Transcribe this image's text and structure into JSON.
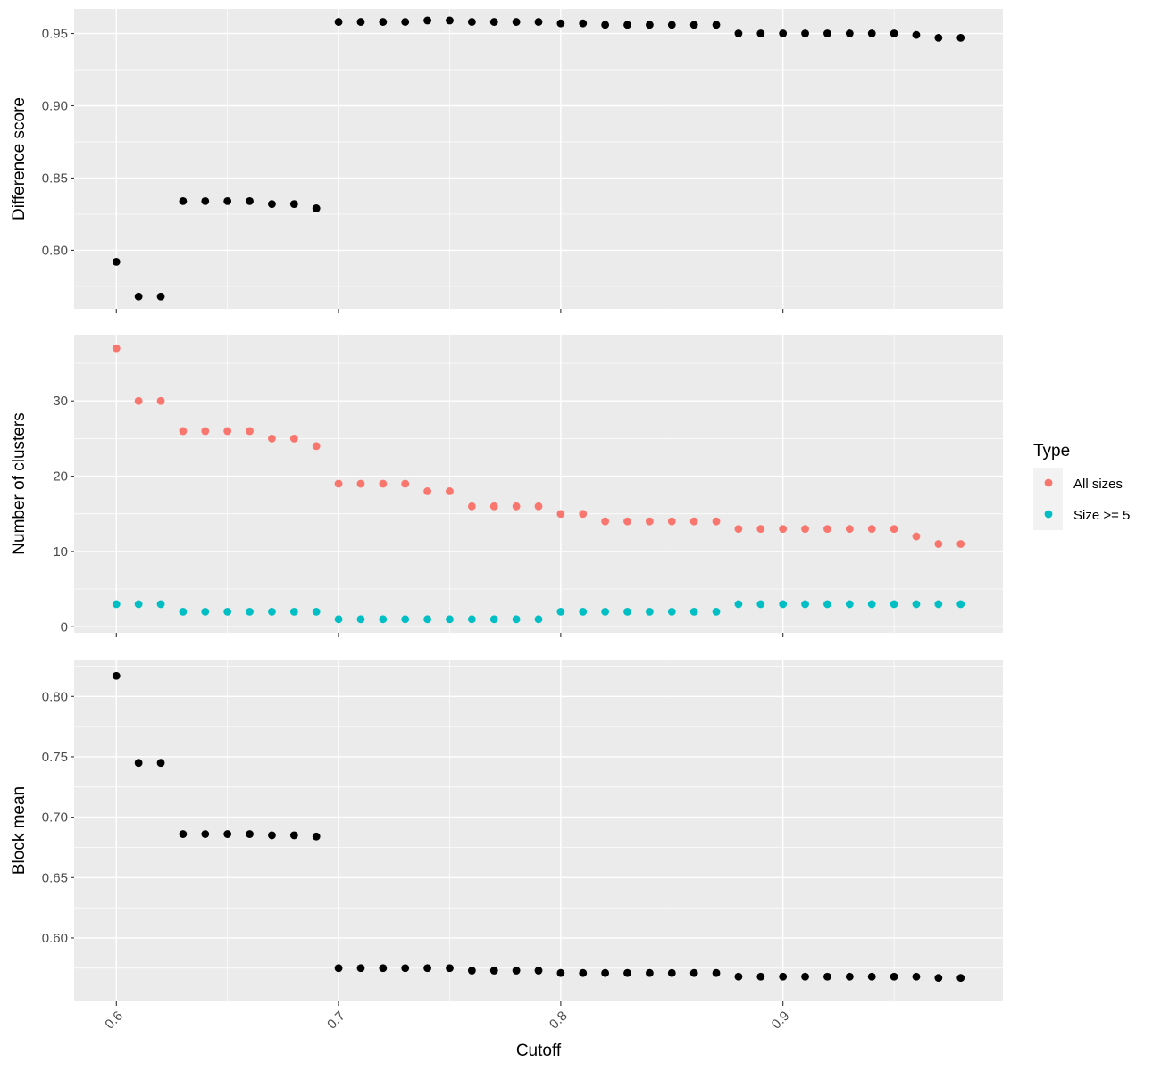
{
  "chart_data": {
    "type": "scatter",
    "xlabel": "Cutoff",
    "xlim": [
      0.581,
      0.999
    ],
    "x_ticks": [
      0.6,
      0.7,
      0.8,
      0.9
    ],
    "x_tick_labels": [
      "0.6",
      "0.7",
      "0.8",
      "0.9"
    ],
    "x": [
      0.6,
      0.61,
      0.62,
      0.63,
      0.64,
      0.65,
      0.66,
      0.67,
      0.68,
      0.69,
      0.7,
      0.71,
      0.72,
      0.73,
      0.74,
      0.75,
      0.76,
      0.77,
      0.78,
      0.79,
      0.8,
      0.81,
      0.82,
      0.83,
      0.84,
      0.85,
      0.86,
      0.87,
      0.88,
      0.89,
      0.9,
      0.91,
      0.92,
      0.93,
      0.94,
      0.95,
      0.96,
      0.97,
      0.98
    ],
    "grid": true,
    "panels": [
      {
        "ylabel": "Difference score",
        "ylim": [
          0.7595,
          0.967
        ],
        "y_ticks": [
          0.8,
          0.85,
          0.9,
          0.95
        ],
        "y_tick_labels": [
          "0.80",
          "0.85",
          "0.90",
          "0.95"
        ],
        "series": [
          {
            "color": "#000000",
            "values": [
              0.792,
              0.768,
              0.768,
              0.834,
              0.834,
              0.834,
              0.834,
              0.832,
              0.832,
              0.829,
              0.958,
              0.958,
              0.958,
              0.958,
              0.959,
              0.959,
              0.958,
              0.958,
              0.958,
              0.958,
              0.957,
              0.957,
              0.956,
              0.956,
              0.956,
              0.956,
              0.956,
              0.956,
              0.95,
              0.95,
              0.95,
              0.95,
              0.95,
              0.95,
              0.95,
              0.95,
              0.949,
              0.947,
              0.947
            ]
          }
        ]
      },
      {
        "ylabel": "Number of clusters",
        "ylim": [
          -0.8,
          38.8
        ],
        "y_ticks": [
          0,
          10,
          20,
          30
        ],
        "y_tick_labels": [
          "0",
          "10",
          "20",
          "30"
        ],
        "series": [
          {
            "name": "All sizes",
            "color": "#f8766d",
            "values": [
              37,
              30,
              30,
              26,
              26,
              26,
              26,
              25,
              25,
              24,
              19,
              19,
              19,
              19,
              18,
              18,
              16,
              16,
              16,
              16,
              15,
              15,
              14,
              14,
              14,
              14,
              14,
              14,
              13,
              13,
              13,
              13,
              13,
              13,
              13,
              13,
              12,
              11,
              11
            ]
          },
          {
            "name": "Size >= 5",
            "color": "#00bfc4",
            "values": [
              3,
              3,
              3,
              2,
              2,
              2,
              2,
              2,
              2,
              2,
              1,
              1,
              1,
              1,
              1,
              1,
              1,
              1,
              1,
              1,
              2,
              2,
              2,
              2,
              2,
              2,
              2,
              2,
              3,
              3,
              3,
              3,
              3,
              3,
              3,
              3,
              3,
              3,
              3
            ]
          }
        ]
      },
      {
        "ylabel": "Block mean",
        "ylim": [
          0.5475,
          0.8305
        ],
        "y_ticks": [
          0.6,
          0.65,
          0.7,
          0.75,
          0.8
        ],
        "y_tick_labels": [
          "0.60",
          "0.65",
          "0.70",
          "0.75",
          "0.80"
        ],
        "series": [
          {
            "color": "#000000",
            "values": [
              0.817,
              0.745,
              0.745,
              0.686,
              0.686,
              0.686,
              0.686,
              0.685,
              0.685,
              0.684,
              0.575,
              0.575,
              0.575,
              0.575,
              0.575,
              0.575,
              0.573,
              0.573,
              0.573,
              0.573,
              0.571,
              0.571,
              0.571,
              0.571,
              0.571,
              0.571,
              0.571,
              0.571,
              0.568,
              0.568,
              0.568,
              0.568,
              0.568,
              0.568,
              0.568,
              0.568,
              0.568,
              0.567,
              0.567
            ]
          }
        ]
      }
    ],
    "legend": {
      "title": "Type",
      "placement": "right",
      "entries": [
        {
          "label": "All sizes",
          "color": "#f8766d"
        },
        {
          "label": "Size >= 5",
          "color": "#00bfc4"
        }
      ]
    }
  }
}
